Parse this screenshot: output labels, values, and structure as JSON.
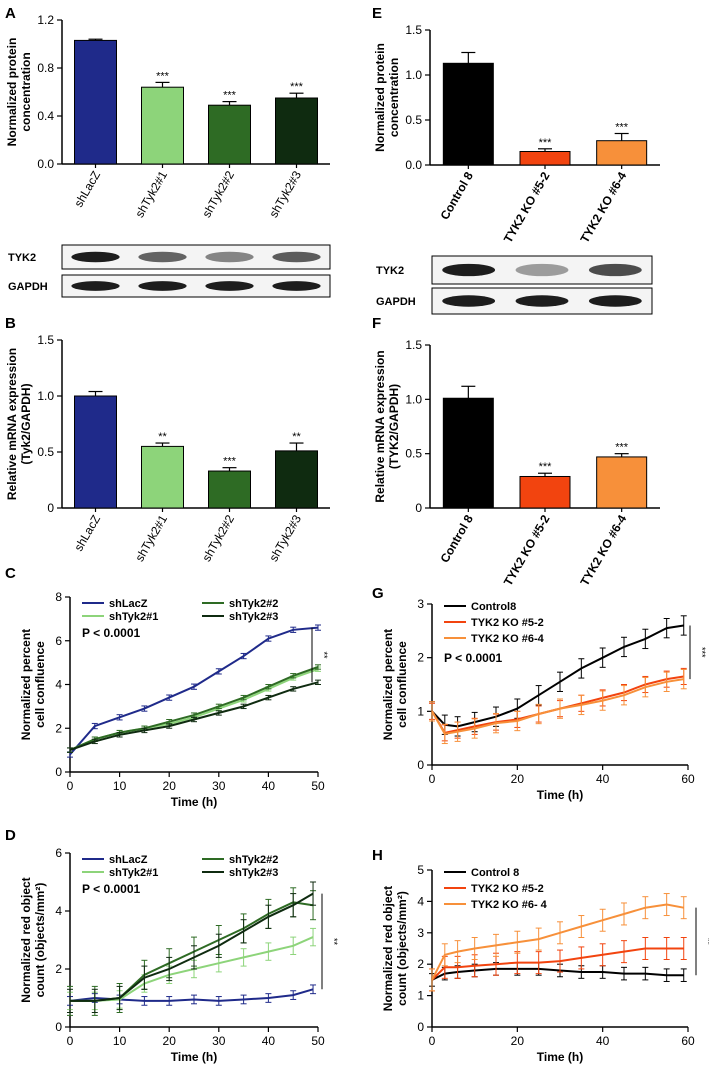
{
  "colors": {
    "navy": "#1f2a8a",
    "lightgreen": "#8dd47a",
    "green": "#2e6b24",
    "darkgreen": "#0f2b10",
    "black": "#000000",
    "red": "#f2440f",
    "orange": "#f7903a"
  },
  "blots": {
    "A": {
      "rows": [
        "TYK2",
        "GAPDH"
      ],
      "lanes": 4,
      "tyk2_intensity": [
        1.0,
        0.55,
        0.35,
        0.6
      ],
      "gapdh_intensity": [
        1.0,
        1.0,
        1.0,
        1.0
      ]
    },
    "E": {
      "rows": [
        "TYK2",
        "GAPDH"
      ],
      "lanes": 3,
      "tyk2_intensity": [
        1.0,
        0.2,
        0.7
      ],
      "gapdh_intensity": [
        1.0,
        1.0,
        1.0
      ]
    }
  },
  "chart_data": [
    {
      "panel": "A",
      "type": "bar",
      "categories": [
        "shLacZ",
        "shTyk2#1",
        "shTyk2#2",
        "shTyk2#3"
      ],
      "values": [
        1.03,
        0.64,
        0.49,
        0.55
      ],
      "errors": [
        0.01,
        0.04,
        0.03,
        0.04
      ],
      "annotations": [
        "",
        "***",
        "***",
        "***"
      ],
      "colors": [
        "#1f2a8a",
        "#8dd47a",
        "#2e6b24",
        "#0f2b10"
      ],
      "ylabel": "Normalized protein concentration",
      "ylabel_lines": [
        "Normalized protein",
        "concentration"
      ],
      "ylim": [
        0,
        1.2
      ],
      "yticks": [
        "0.0",
        "0.4",
        "0.8",
        "1.2"
      ]
    },
    {
      "panel": "B",
      "type": "bar",
      "categories": [
        "shLacZ",
        "shTyk2#1",
        "shTyk2#2",
        "shTyk2#3"
      ],
      "values": [
        1.0,
        0.55,
        0.33,
        0.51
      ],
      "errors": [
        0.04,
        0.03,
        0.03,
        0.07
      ],
      "annotations": [
        "",
        "**",
        "***",
        "**"
      ],
      "colors": [
        "#1f2a8a",
        "#8dd47a",
        "#2e6b24",
        "#0f2b10"
      ],
      "ylabel": "Relative mRNA expression (Tyk2/GAPDH)",
      "ylabel_lines": [
        "Relative mRNA expression",
        "(Tyk2/GAPDH)"
      ],
      "ylim": [
        0,
        1.5
      ],
      "yticks": [
        "0",
        "0.5",
        "1.0",
        "1.5"
      ]
    },
    {
      "panel": "E",
      "type": "bar",
      "categories": [
        "Control 8",
        "TYK2 KO #5-2",
        "TYK2 KO #6-4"
      ],
      "values": [
        1.13,
        0.15,
        0.27
      ],
      "errors": [
        0.12,
        0.03,
        0.08
      ],
      "annotations": [
        "",
        "***",
        "***"
      ],
      "colors": [
        "#000000",
        "#f2440f",
        "#f7903a"
      ],
      "ylabel": "Normalized protein concentration",
      "ylabel_lines": [
        "Normalized protein",
        "concentration"
      ],
      "ylim": [
        0,
        1.5
      ],
      "yticks": [
        "0.0",
        "0.5",
        "1.0",
        "1.5"
      ]
    },
    {
      "panel": "F",
      "type": "bar",
      "categories": [
        "Control 8",
        "TYK2 KO #5-2",
        "TYK2 KO #6-4"
      ],
      "values": [
        1.01,
        0.29,
        0.47
      ],
      "errors": [
        0.11,
        0.03,
        0.03
      ],
      "annotations": [
        "",
        "***",
        "***"
      ],
      "colors": [
        "#000000",
        "#f2440f",
        "#f7903a"
      ],
      "ylabel": "Relative mRNA expression (TYK2/GAPDH)",
      "ylabel_lines": [
        "Relative mRNA expression",
        "(TYK2/GAPDH)"
      ],
      "ylim": [
        0,
        1.5
      ],
      "yticks": [
        "0",
        "0.5",
        "1.0",
        "1.5"
      ]
    },
    {
      "panel": "C",
      "type": "line",
      "xlabel": "Time (h)",
      "ylabel": "Normalized percent cell confluence",
      "ylabel_lines": [
        "Normalized percent",
        "cell confluence"
      ],
      "xlim": [
        0,
        50
      ],
      "ylim": [
        0,
        8
      ],
      "xticks": [
        0,
        10,
        20,
        30,
        40,
        50
      ],
      "yticks": [
        0,
        2,
        4,
        6,
        8
      ],
      "stat_text": "P < 0.0001",
      "sig_mark": "**",
      "legend": [
        "shLacZ",
        "shTyk2#1",
        "shTyk2#2",
        "shTyk2#3"
      ],
      "series": [
        {
          "name": "shLacZ",
          "color": "#1f2a8a",
          "err": 0.12,
          "x": [
            0,
            5,
            10,
            15,
            20,
            25,
            30,
            35,
            40,
            45,
            50
          ],
          "y": [
            0.8,
            2.1,
            2.5,
            2.9,
            3.4,
            3.9,
            4.6,
            5.3,
            6.1,
            6.5,
            6.6
          ]
        },
        {
          "name": "shTyk2#1",
          "color": "#8dd47a",
          "err": 0.1,
          "x": [
            0,
            5,
            10,
            15,
            20,
            25,
            30,
            35,
            40,
            45,
            50
          ],
          "y": [
            1.0,
            1.5,
            1.8,
            2.0,
            2.2,
            2.5,
            2.9,
            3.3,
            3.8,
            4.3,
            4.7
          ]
        },
        {
          "name": "shTyk2#2",
          "color": "#2e6b24",
          "err": 0.1,
          "x": [
            0,
            5,
            10,
            15,
            20,
            25,
            30,
            35,
            40,
            45,
            50
          ],
          "y": [
            1.0,
            1.5,
            1.8,
            2.0,
            2.3,
            2.6,
            3.0,
            3.4,
            3.9,
            4.4,
            4.8
          ]
        },
        {
          "name": "shTyk2#3",
          "color": "#0f2b10",
          "err": 0.1,
          "x": [
            0,
            5,
            10,
            15,
            20,
            25,
            30,
            35,
            40,
            45,
            50
          ],
          "y": [
            1.0,
            1.4,
            1.7,
            1.9,
            2.1,
            2.4,
            2.7,
            3.0,
            3.4,
            3.8,
            4.1
          ]
        }
      ]
    },
    {
      "panel": "G",
      "type": "line",
      "xlabel": "Time (h)",
      "ylabel": "Normalized percent cell confluence",
      "ylabel_lines": [
        "Normalized percent",
        "cell confluence"
      ],
      "xlim": [
        0,
        60
      ],
      "ylim": [
        0,
        3
      ],
      "xticks": [
        0,
        20,
        40,
        60
      ],
      "yticks": [
        0,
        1,
        2,
        3
      ],
      "stat_text": "P < 0.0001",
      "sig_mark": "***",
      "legend": [
        "Control8",
        "TYK2 KO #5-2",
        "TYK2 KO #6-4"
      ],
      "series": [
        {
          "name": "Control8",
          "color": "#000000",
          "err": 0.18,
          "x": [
            0,
            3,
            6,
            10,
            15,
            20,
            25,
            30,
            35,
            40,
            45,
            50,
            55,
            59
          ],
          "y": [
            1.0,
            0.75,
            0.72,
            0.8,
            0.9,
            1.05,
            1.3,
            1.55,
            1.8,
            2.0,
            2.2,
            2.35,
            2.55,
            2.6
          ]
        },
        {
          "name": "TYK2 KO #5-2",
          "color": "#f2440f",
          "err": 0.15,
          "x": [
            0,
            3,
            6,
            10,
            15,
            20,
            25,
            30,
            35,
            40,
            45,
            50,
            55,
            59
          ],
          "y": [
            1.0,
            0.6,
            0.65,
            0.72,
            0.8,
            0.85,
            0.95,
            1.05,
            1.15,
            1.25,
            1.35,
            1.5,
            1.6,
            1.65
          ]
        },
        {
          "name": "TYK2 KO #6-4",
          "color": "#f7903a",
          "err": 0.18,
          "x": [
            0,
            3,
            6,
            10,
            15,
            20,
            25,
            30,
            35,
            40,
            45,
            50,
            55,
            59
          ],
          "y": [
            1.0,
            0.58,
            0.62,
            0.68,
            0.78,
            0.82,
            0.95,
            1.05,
            1.12,
            1.2,
            1.3,
            1.45,
            1.55,
            1.6
          ]
        }
      ]
    },
    {
      "panel": "D",
      "type": "line",
      "xlabel": "Time (h)",
      "ylabel": "Normalized red object count (objects/mm²)",
      "ylabel_lines": [
        "Normalized red object",
        "count (objects/mm²)"
      ],
      "xlim": [
        0,
        50
      ],
      "ylim": [
        0,
        6
      ],
      "xticks": [
        0,
        10,
        20,
        30,
        40,
        50
      ],
      "yticks": [
        0,
        2,
        4,
        6
      ],
      "stat_text": "P < 0.0001",
      "sig_mark": "**",
      "legend": [
        "shLacZ",
        "shTyk2#1",
        "shTyk2#2",
        "shTyk2#3"
      ],
      "series": [
        {
          "name": "shLacZ",
          "color": "#1f2a8a",
          "err": 0.15,
          "x": [
            0,
            5,
            10,
            15,
            20,
            25,
            30,
            35,
            40,
            45,
            49
          ],
          "y": [
            0.9,
            1.0,
            0.95,
            0.9,
            0.9,
            0.95,
            0.9,
            0.95,
            1.0,
            1.1,
            1.3
          ]
        },
        {
          "name": "shTyk2#1",
          "color": "#8dd47a",
          "err": 0.3,
          "x": [
            0,
            5,
            10,
            15,
            20,
            25,
            30,
            35,
            40,
            45,
            49
          ],
          "y": [
            0.9,
            0.9,
            0.95,
            1.5,
            1.8,
            2.0,
            2.2,
            2.4,
            2.6,
            2.8,
            3.1
          ]
        },
        {
          "name": "shTyk2#2",
          "color": "#2e6b24",
          "err": 0.5,
          "x": [
            0,
            5,
            10,
            15,
            20,
            25,
            30,
            35,
            40,
            45,
            49
          ],
          "y": [
            0.9,
            0.9,
            1.0,
            1.8,
            2.2,
            2.6,
            3.0,
            3.4,
            3.9,
            4.3,
            4.2
          ]
        },
        {
          "name": "shTyk2#3",
          "color": "#0f2b10",
          "err": 0.4,
          "x": [
            0,
            5,
            10,
            15,
            20,
            25,
            30,
            35,
            40,
            45,
            49
          ],
          "y": [
            0.9,
            0.9,
            1.0,
            1.7,
            2.0,
            2.4,
            2.8,
            3.3,
            3.8,
            4.2,
            4.6
          ]
        }
      ]
    },
    {
      "panel": "H",
      "type": "line",
      "xlabel": "Time (h)",
      "ylabel": "Normalized red object count (objects/mm²)",
      "ylabel_lines": [
        "Normalized red object",
        "count (objects/mm²)"
      ],
      "xlim": [
        0,
        60
      ],
      "ylim": [
        0,
        5
      ],
      "xticks": [
        0,
        20,
        40,
        60
      ],
      "yticks": [
        0,
        1,
        2,
        3,
        4,
        5
      ],
      "stat_text": "",
      "sig_mark": "**",
      "legend": [
        "Control 8",
        "TYK2 KO #5-2",
        "TYK2 KO #6- 4"
      ],
      "series": [
        {
          "name": "Control 8",
          "color": "#000000",
          "err": 0.2,
          "x": [
            0,
            3,
            6,
            10,
            15,
            20,
            25,
            30,
            35,
            40,
            45,
            50,
            55,
            59
          ],
          "y": [
            1.5,
            1.7,
            1.75,
            1.8,
            1.85,
            1.85,
            1.85,
            1.8,
            1.75,
            1.75,
            1.7,
            1.7,
            1.65,
            1.65
          ]
        },
        {
          "name": "TYK2 KO #5-2",
          "color": "#f2440f",
          "err": 0.35,
          "x": [
            0,
            3,
            6,
            10,
            15,
            20,
            25,
            30,
            35,
            40,
            45,
            50,
            55,
            59
          ],
          "y": [
            1.5,
            1.9,
            1.9,
            1.95,
            2.0,
            2.05,
            2.05,
            2.1,
            2.2,
            2.3,
            2.4,
            2.5,
            2.5,
            2.5
          ]
        },
        {
          "name": "TYK2 KO #6- 4",
          "color": "#f7903a",
          "err": 0.35,
          "x": [
            0,
            3,
            6,
            10,
            15,
            20,
            25,
            30,
            35,
            40,
            45,
            50,
            55,
            59
          ],
          "y": [
            1.5,
            2.3,
            2.4,
            2.5,
            2.6,
            2.7,
            2.8,
            3.0,
            3.2,
            3.4,
            3.6,
            3.8,
            3.9,
            3.8
          ]
        }
      ]
    }
  ]
}
